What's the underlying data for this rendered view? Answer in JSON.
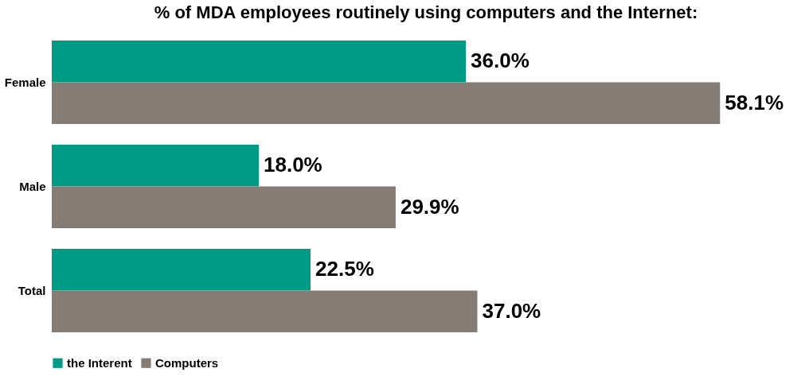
{
  "chart_data": {
    "type": "bar",
    "orientation": "horizontal",
    "title": "% of MDA employees routinely using computers and the Internet:",
    "categories": [
      "Female",
      "Male",
      "Total"
    ],
    "series": [
      {
        "name": "the Interent",
        "color": "#009b84",
        "values": [
          36.0,
          18.0,
          22.5
        ],
        "value_labels": [
          "36.0%",
          "18.0%",
          "22.5%"
        ]
      },
      {
        "name": "Computers",
        "color": "#857c76",
        "values": [
          58.1,
          29.9,
          37.0
        ],
        "value_labels": [
          "58.1%",
          "29.9%",
          "37.0%"
        ]
      }
    ],
    "legend": "bottom",
    "grid": false
  }
}
